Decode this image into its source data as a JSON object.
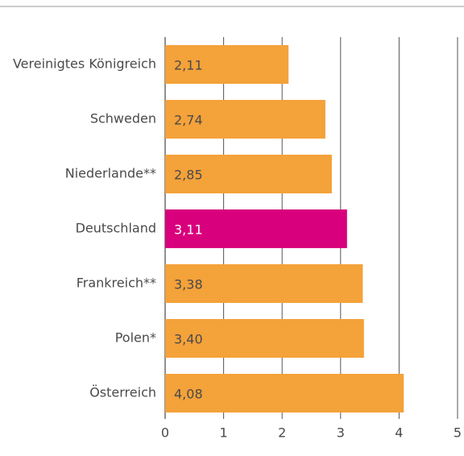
{
  "chart_data": {
    "type": "barh",
    "categories": [
      "Vereinigtes Königreich",
      "Schweden",
      "Niederlande**",
      "Deutschland",
      "Frankreich**",
      "Polen*",
      "Österreich"
    ],
    "values": [
      2.11,
      2.74,
      2.85,
      3.11,
      3.38,
      3.4,
      4.08
    ],
    "value_labels": [
      "2,11",
      "2,74",
      "2,85",
      "3,11",
      "3,38",
      "3,40",
      "4,08"
    ],
    "colors": [
      "#f4a23a",
      "#f4a23a",
      "#f4a23a",
      "#d8007c",
      "#f4a23a",
      "#f4a23a",
      "#f4a23a"
    ],
    "label_colors": [
      "#4a4a4a",
      "#4a4a4a",
      "#4a4a4a",
      "#ffffff",
      "#4a4a4a",
      "#4a4a4a",
      "#4a4a4a"
    ],
    "xlim": [
      0,
      5
    ],
    "xticks": [
      0,
      1,
      2,
      3,
      4,
      5
    ],
    "grid": true
  }
}
